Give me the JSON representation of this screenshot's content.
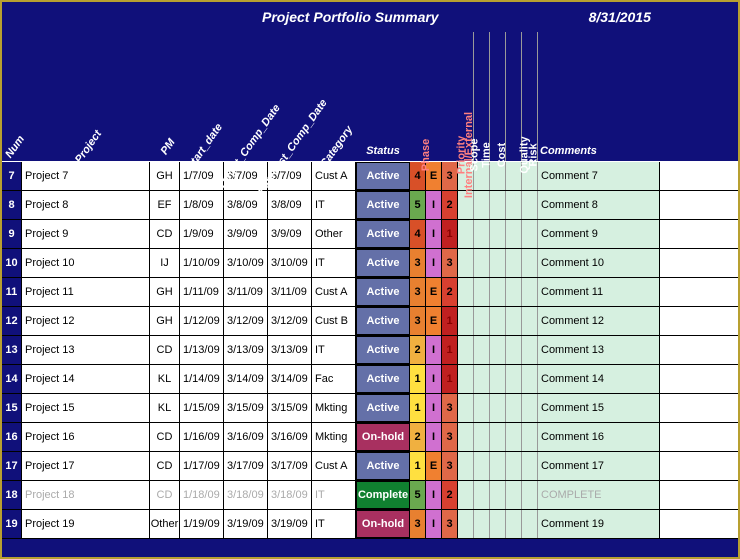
{
  "title": "Project Portfolio Summary",
  "date": "8/31/2015",
  "columns": {
    "num": "Num",
    "project": "Project",
    "pm": "PM",
    "start": "Start_date",
    "target": "Target_Comp_Date",
    "forecast": "Forecast_Comp_Date",
    "category": "Category",
    "status": "Status",
    "phase": "Phase",
    "ie": "Internal/External",
    "priority": "Priority",
    "scope": "Scope",
    "time": "Time",
    "cost": "Cost",
    "quality": "Quality",
    "risk": "Risk",
    "comments": "Comments"
  },
  "status_colors": {
    "Active": "#6470a8",
    "On-hold": "#a83060",
    "Complete": "#108030"
  },
  "phase_colors": {
    "1": "#ffe040",
    "2": "#f0b040",
    "3": "#e88030",
    "4": "#d85028",
    "5": "#6aa84f"
  },
  "ie_colors": {
    "E": "#f08030",
    "I": "#d070d0"
  },
  "priority_colors": {
    "1": "#c02020",
    "2": "#d84030",
    "3": "#e06848"
  },
  "mini_bg": "#d6f0e0",
  "rows": [
    {
      "num": "7",
      "project": "Project 7",
      "pm": "GH",
      "start": "1/7/09",
      "target": "3/7/09",
      "forecast": "3/7/09",
      "category": "Cust A",
      "status": "Active",
      "phase": "4",
      "ie": "E",
      "priority": "3",
      "comment": "Comment 7",
      "complete": false
    },
    {
      "num": "8",
      "project": "Project 8",
      "pm": "EF",
      "start": "1/8/09",
      "target": "3/8/09",
      "forecast": "3/8/09",
      "category": "IT",
      "status": "Active",
      "phase": "5",
      "ie": "I",
      "priority": "2",
      "comment": "Comment 8",
      "complete": false
    },
    {
      "num": "9",
      "project": "Project 9",
      "pm": "CD",
      "start": "1/9/09",
      "target": "3/9/09",
      "forecast": "3/9/09",
      "category": "Other",
      "status": "Active",
      "phase": "4",
      "ie": "I",
      "priority": "1",
      "comment": "Comment 9",
      "complete": false
    },
    {
      "num": "10",
      "project": "Project 10",
      "pm": "IJ",
      "start": "1/10/09",
      "target": "3/10/09",
      "forecast": "3/10/09",
      "category": "IT",
      "status": "Active",
      "phase": "3",
      "ie": "I",
      "priority": "3",
      "comment": "Comment 10",
      "complete": false
    },
    {
      "num": "11",
      "project": "Project 11",
      "pm": "GH",
      "start": "1/11/09",
      "target": "3/11/09",
      "forecast": "3/11/09",
      "category": "Cust A",
      "status": "Active",
      "phase": "3",
      "ie": "E",
      "priority": "2",
      "comment": "Comment 11",
      "complete": false
    },
    {
      "num": "12",
      "project": "Project 12",
      "pm": "GH",
      "start": "1/12/09",
      "target": "3/12/09",
      "forecast": "3/12/09",
      "category": "Cust B",
      "status": "Active",
      "phase": "3",
      "ie": "E",
      "priority": "1",
      "comment": "Comment 12",
      "complete": false
    },
    {
      "num": "13",
      "project": "Project 13",
      "pm": "CD",
      "start": "1/13/09",
      "target": "3/13/09",
      "forecast": "3/13/09",
      "category": "IT",
      "status": "Active",
      "phase": "2",
      "ie": "I",
      "priority": "1",
      "comment": "Comment 13",
      "complete": false
    },
    {
      "num": "14",
      "project": "Project 14",
      "pm": "KL",
      "start": "1/14/09",
      "target": "3/14/09",
      "forecast": "3/14/09",
      "category": "Fac",
      "status": "Active",
      "phase": "1",
      "ie": "I",
      "priority": "1",
      "comment": "Comment 14",
      "complete": false
    },
    {
      "num": "15",
      "project": "Project 15",
      "pm": "KL",
      "start": "1/15/09",
      "target": "3/15/09",
      "forecast": "3/15/09",
      "category": "Mkting",
      "status": "Active",
      "phase": "1",
      "ie": "I",
      "priority": "3",
      "comment": "Comment 15",
      "complete": false
    },
    {
      "num": "16",
      "project": "Project 16",
      "pm": "CD",
      "start": "1/16/09",
      "target": "3/16/09",
      "forecast": "3/16/09",
      "category": "Mkting",
      "status": "On-hold",
      "phase": "2",
      "ie": "I",
      "priority": "3",
      "comment": "Comment 16",
      "complete": false
    },
    {
      "num": "17",
      "project": "Project 17",
      "pm": "CD",
      "start": "1/17/09",
      "target": "3/17/09",
      "forecast": "3/17/09",
      "category": "Cust A",
      "status": "Active",
      "phase": "1",
      "ie": "E",
      "priority": "3",
      "comment": "Comment 17",
      "complete": false
    },
    {
      "num": "18",
      "project": "Project 18",
      "pm": "CD",
      "start": "1/18/09",
      "target": "3/18/09",
      "forecast": "3/18/09",
      "category": "IT",
      "status": "Complete",
      "phase": "5",
      "ie": "I",
      "priority": "2",
      "comment": "COMPLETE",
      "complete": true
    },
    {
      "num": "19",
      "project": "Project 19",
      "pm": "Other",
      "start": "1/19/09",
      "target": "3/19/09",
      "forecast": "3/19/09",
      "category": "IT",
      "status": "On-hold",
      "phase": "3",
      "ie": "I",
      "priority": "3",
      "comment": "Comment 19",
      "complete": false
    }
  ]
}
